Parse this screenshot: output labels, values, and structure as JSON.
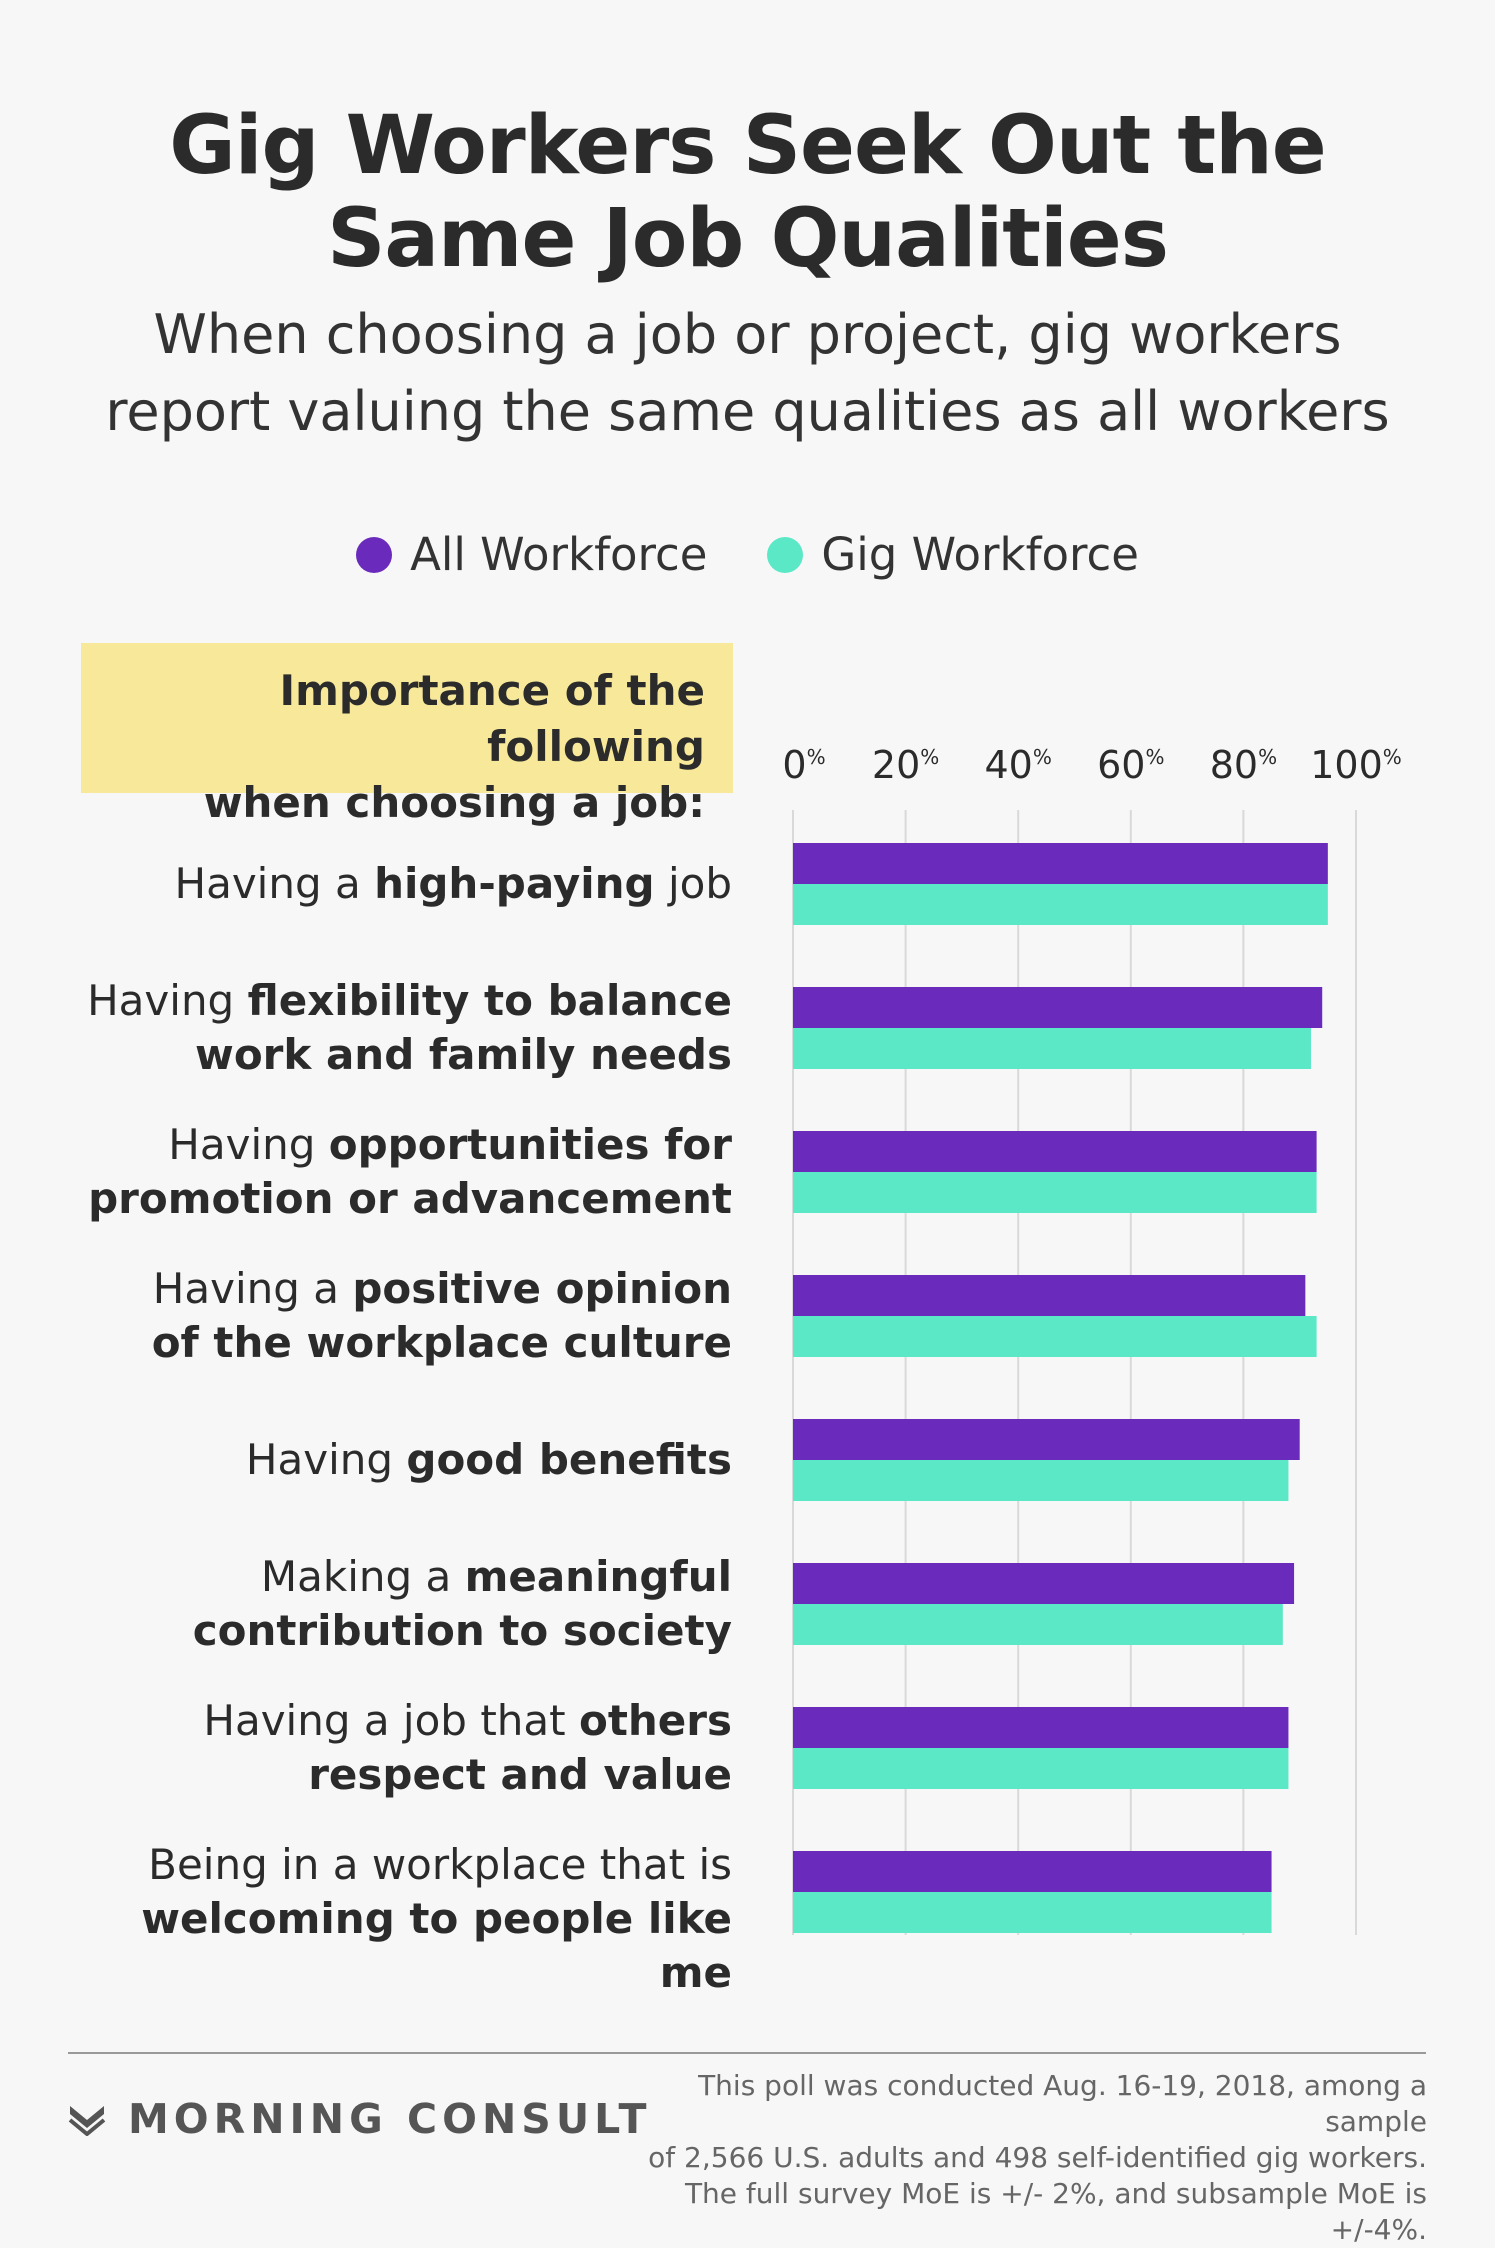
{
  "title": {
    "line1": "Gig Workers Seek Out the",
    "line2": "Same Job Qualities"
  },
  "subtitle": {
    "line1": "When choosing a job or project, gig workers",
    "line2": "report valuing the same qualities as all workers"
  },
  "legend": [
    {
      "label": "All Workforce",
      "color": "#6a2bbd"
    },
    {
      "label": "Gig Workforce",
      "color": "#5ae8c6"
    }
  ],
  "importance_box": {
    "line1": "Importance of the following",
    "line2": "when choosing a job:"
  },
  "rows": [
    {
      "parts": [
        {
          "text": "Having a ",
          "bold": false
        },
        {
          "text": "high-paying",
          "bold": true
        },
        {
          "text": " job",
          "bold": false
        }
      ]
    },
    {
      "parts": [
        {
          "text": "Having ",
          "bold": false
        },
        {
          "text": "flexibility to balance",
          "bold": true
        },
        {
          "text": "\n",
          "bold": false
        },
        {
          "text": "work and family needs",
          "bold": true
        }
      ]
    },
    {
      "parts": [
        {
          "text": "Having ",
          "bold": false
        },
        {
          "text": "opportunities for",
          "bold": true
        },
        {
          "text": "\n",
          "bold": false
        },
        {
          "text": "promotion or advancement",
          "bold": true
        }
      ]
    },
    {
      "parts": [
        {
          "text": "Having a ",
          "bold": false
        },
        {
          "text": "positive opinion",
          "bold": true
        },
        {
          "text": "\n",
          "bold": false
        },
        {
          "text": "of the workplace culture",
          "bold": true
        }
      ]
    },
    {
      "parts": [
        {
          "text": "Having ",
          "bold": false
        },
        {
          "text": "good benefits",
          "bold": true
        }
      ]
    },
    {
      "parts": [
        {
          "text": "Making a ",
          "bold": false
        },
        {
          "text": "meaningful",
          "bold": true
        },
        {
          "text": "\n",
          "bold": false
        },
        {
          "text": "contribution to society",
          "bold": true
        }
      ]
    },
    {
      "parts": [
        {
          "text": "Having a job that ",
          "bold": false
        },
        {
          "text": "others",
          "bold": true
        },
        {
          "text": "\n",
          "bold": false
        },
        {
          "text": "respect and value",
          "bold": true
        }
      ]
    },
    {
      "parts": [
        {
          "text": "Being in a workplace that is",
          "bold": false
        },
        {
          "text": "\n",
          "bold": false
        },
        {
          "text": "welcoming to people like me",
          "bold": true
        }
      ]
    }
  ],
  "chart_data": {
    "type": "bar",
    "orientation": "horizontal",
    "categories": [
      "Having a high-paying job",
      "Having flexibility to balance work and family needs",
      "Having opportunities for promotion or advancement",
      "Having a positive opinion of the workplace culture",
      "Having good benefits",
      "Making a meaningful contribution to society",
      "Having a job that others respect and value",
      "Being in a workplace that is welcoming to people like me"
    ],
    "series": [
      {
        "name": "All Workforce",
        "color": "#6a2bbd",
        "values": [
          95,
          94,
          93,
          91,
          90,
          89,
          88,
          85
        ]
      },
      {
        "name": "Gig Workforce",
        "color": "#5ae8c6",
        "values": [
          95,
          92,
          93,
          93,
          88,
          87,
          88,
          85
        ]
      }
    ],
    "xlim": [
      0,
      100
    ],
    "ticks": [
      {
        "num": "0",
        "unit": "%"
      },
      {
        "num": "20",
        "unit": "%"
      },
      {
        "num": "40",
        "unit": "%"
      },
      {
        "num": "60",
        "unit": "%"
      },
      {
        "num": "80",
        "unit": "%"
      },
      {
        "num": "100",
        "unit": "%"
      }
    ],
    "tick_values": [
      0,
      20,
      40,
      60,
      80,
      100
    ],
    "grid": true,
    "legend_position": "top"
  },
  "brand": {
    "name": "MORNING CONSULT",
    "logo_color": "#555555"
  },
  "footnote": {
    "line1": "This poll was conducted Aug. 16-19, 2018, among a sample",
    "line2": "of 2,566 U.S. adults and 498 self-identified gig workers.",
    "line3": "The full survey MoE is +/- 2%, and subsample MoE is +/-4%."
  }
}
